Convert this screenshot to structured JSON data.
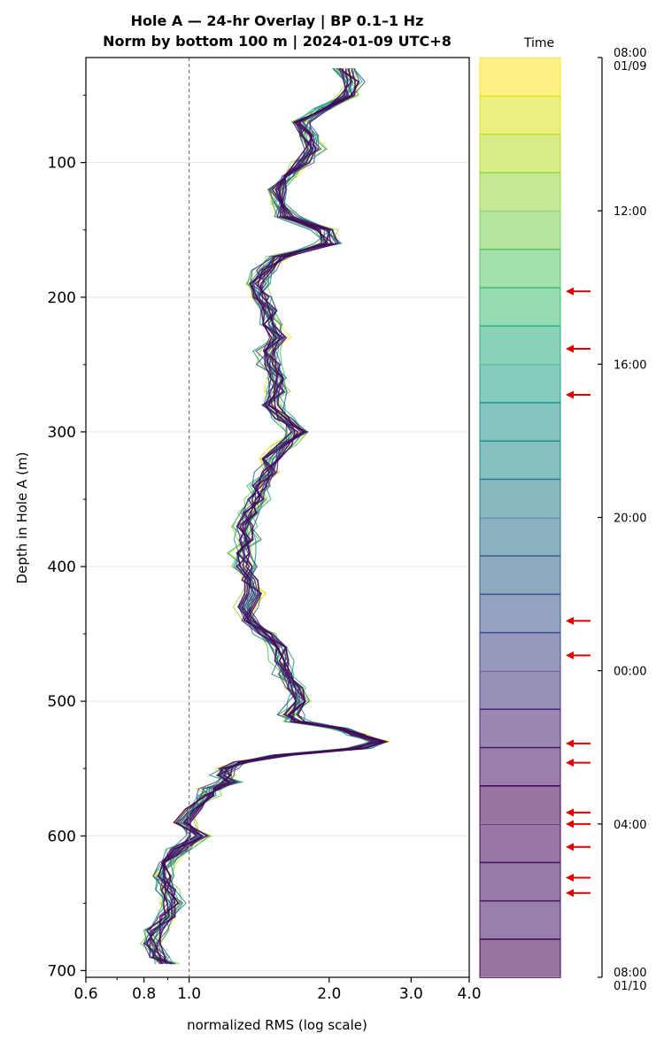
{
  "chart_data": {
    "type": "line",
    "title": [
      "Hole A — 24-hr Overlay  |  BP 0.1–1 Hz",
      "Norm by bottom 100 m  |  2024-01-09 UTC+8"
    ],
    "xlabel": "normalized RMS  (log scale)",
    "ylabel": "Depth in Hole A (m)",
    "x_scale": "log",
    "xlim": [
      0.6,
      4.0
    ],
    "ylim": [
      705,
      22
    ],
    "x_ticks": [
      0.6,
      0.8,
      1.0,
      2.0,
      3.0,
      4.0
    ],
    "x_tick_labels": [
      "0.6",
      "0.8",
      "1.0",
      "2.0",
      "3.0",
      "4.0"
    ],
    "y_ticks": [
      100,
      200,
      300,
      400,
      500,
      600,
      700
    ],
    "y_tick_labels": [
      "100",
      "200",
      "300",
      "400",
      "500",
      "600",
      "700"
    ],
    "reference_line_x": 1.0,
    "grid": "horizontal",
    "series_count": 24,
    "colormap": "viridis",
    "series_color_order": "first hour yellow (08:00 01/09) to last hour dark purple (08:00 01/10)",
    "profile": {
      "depth": [
        30,
        40,
        50,
        60,
        70,
        80,
        90,
        100,
        110,
        120,
        130,
        140,
        150,
        160,
        170,
        180,
        190,
        200,
        210,
        220,
        230,
        240,
        250,
        260,
        270,
        280,
        290,
        300,
        310,
        320,
        330,
        340,
        350,
        360,
        370,
        380,
        390,
        400,
        410,
        420,
        430,
        440,
        450,
        460,
        470,
        480,
        490,
        500,
        510,
        515,
        520,
        525,
        530,
        535,
        540,
        545,
        550,
        555,
        560,
        565,
        570,
        580,
        590,
        600,
        610,
        620,
        630,
        640,
        650,
        660,
        670,
        680,
        690,
        695
      ],
      "rms": [
        2.15,
        2.25,
        2.2,
        1.95,
        1.75,
        1.8,
        1.85,
        1.75,
        1.6,
        1.55,
        1.58,
        1.62,
        1.95,
        2.0,
        1.55,
        1.45,
        1.4,
        1.42,
        1.48,
        1.5,
        1.55,
        1.48,
        1.5,
        1.55,
        1.55,
        1.5,
        1.6,
        1.72,
        1.6,
        1.5,
        1.48,
        1.42,
        1.4,
        1.35,
        1.32,
        1.34,
        1.3,
        1.32,
        1.35,
        1.38,
        1.33,
        1.35,
        1.45,
        1.55,
        1.58,
        1.6,
        1.7,
        1.75,
        1.65,
        1.7,
        2.1,
        2.3,
        2.55,
        2.3,
        1.6,
        1.3,
        1.2,
        1.18,
        1.22,
        1.12,
        1.1,
        1.02,
        0.97,
        1.05,
        0.95,
        0.9,
        0.88,
        0.9,
        0.92,
        0.9,
        0.85,
        0.83,
        0.86,
        0.9
      ],
      "spread_note": "24 hourly traces overlaid with small per-hour variation around this profile"
    },
    "colorbar": {
      "title": "Time",
      "ticks": [
        {
          "label": "08:00",
          "sub": "01/09",
          "hour": 0
        },
        {
          "label": "12:00",
          "hour": 4
        },
        {
          "label": "16:00",
          "hour": 8
        },
        {
          "label": "20:00",
          "hour": 12
        },
        {
          "label": "00:00",
          "hour": 16
        },
        {
          "label": "04:00",
          "hour": 20
        },
        {
          "label": "08:00",
          "sub": "01/10",
          "hour": 24
        }
      ],
      "colors": [
        "#fde725",
        "#dde318",
        "#bade28",
        "#95d840",
        "#75d054",
        "#56c667",
        "#3dbc74",
        "#29af7f",
        "#20a386",
        "#1f968b",
        "#238a8d",
        "#287d8e",
        "#2d718e",
        "#33638d",
        "#39568c",
        "#404688",
        "#453781",
        "#482576",
        "#481467",
        "#440154",
        "#45085b",
        "#460f62",
        "#471668",
        "#440154"
      ],
      "marked_hours": [
        6.1,
        7.6,
        8.8,
        14.7,
        15.6,
        17.9,
        18.4,
        19.7,
        20.0,
        20.6,
        21.4,
        21.8
      ]
    }
  }
}
